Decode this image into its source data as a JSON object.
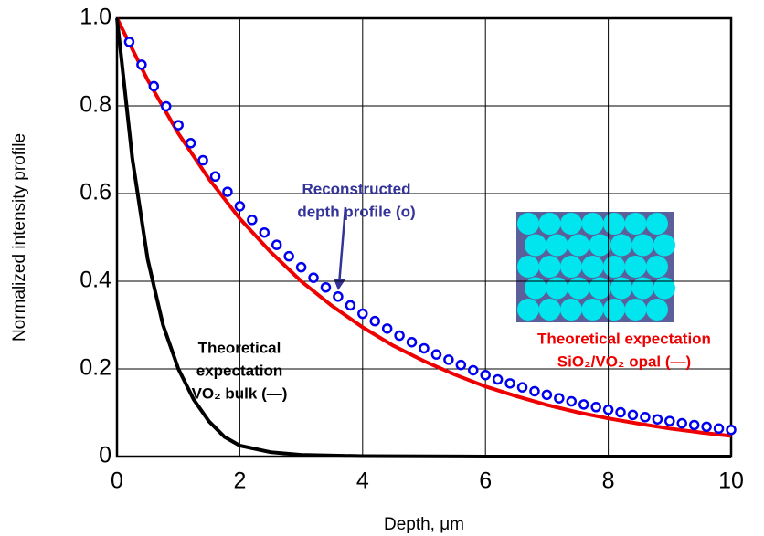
{
  "chart_data": {
    "type": "line",
    "x_label": "Depth, μm",
    "y_label": "Normalized intensity profile",
    "xlim": [
      0,
      10
    ],
    "ylim": [
      0,
      1
    ],
    "xticks": [
      0,
      2,
      4,
      6,
      8,
      10
    ],
    "yticks": [
      0,
      0.2,
      0.4,
      0.6,
      0.8,
      {
        "value": 1,
        "label": "1.0"
      }
    ],
    "grid": true,
    "series": [
      {
        "style": "markers",
        "color": "#0000ee",
        "x": [
          0.2,
          0.4,
          0.6,
          0.8,
          1,
          1.2,
          1.4,
          1.6,
          1.8,
          2,
          2.2,
          2.4,
          2.6,
          2.8,
          3,
          3.2,
          3.4,
          3.6,
          3.8,
          4,
          4.2,
          4.4,
          4.6,
          4.8,
          5,
          5.2,
          5.4,
          5.6,
          5.8,
          6,
          6.2,
          6.4,
          6.6,
          6.8,
          7,
          7.2,
          7.4,
          7.6,
          7.8,
          8,
          8.2,
          8.4,
          8.6,
          8.8,
          9,
          9.2,
          9.4,
          9.6,
          9.8,
          10
        ],
        "values": [
          0.946,
          0.894,
          0.845,
          0.799,
          0.756,
          0.715,
          0.676,
          0.639,
          0.604,
          0.571,
          0.54,
          0.511,
          0.483,
          0.457,
          0.432,
          0.408,
          0.386,
          0.365,
          0.345,
          0.326,
          0.309,
          0.292,
          0.276,
          0.261,
          0.247,
          0.233,
          0.221,
          0.209,
          0.197,
          0.186,
          0.176,
          0.167,
          0.158,
          0.149,
          0.141,
          0.133,
          0.126,
          0.119,
          0.113,
          0.107,
          0.101,
          0.095,
          0.09,
          0.085,
          0.081,
          0.076,
          0.072,
          0.068,
          0.064,
          0.061
        ]
      },
      {
        "style": "line",
        "color": "#ee0000",
        "x": [
          0,
          0.5,
          1,
          1.5,
          2,
          2.5,
          3,
          3.5,
          4,
          4.5,
          5,
          5.5,
          6,
          6.5,
          7,
          7.5,
          8,
          8.5,
          9,
          9.5,
          10
        ],
        "values": [
          1,
          0.859,
          0.737,
          0.633,
          0.543,
          0.467,
          0.4,
          0.344,
          0.295,
          0.253,
          0.218,
          0.187,
          0.16,
          0.138,
          0.118,
          0.101,
          0.087,
          0.075,
          0.064,
          0.055,
          0.047
        ]
      },
      {
        "style": "line",
        "color": "#000000",
        "x": [
          0,
          0.25,
          0.5,
          0.75,
          1,
          1.25,
          1.5,
          1.75,
          2,
          2.5,
          3,
          4,
          6,
          8,
          10
        ],
        "values": [
          1,
          0.68,
          0.45,
          0.3,
          0.2,
          0.13,
          0.08,
          0.045,
          0.025,
          0.01,
          0.004,
          0.001,
          0,
          0,
          0
        ]
      }
    ],
    "annotations": [
      {
        "color": "#333399",
        "lines": [
          "Reconstructed",
          "depth profile  (o)"
        ]
      },
      {
        "color": "#000000",
        "lines": [
          "Theoretical",
          "expectation",
          "VO₂ bulk (—)"
        ]
      },
      {
        "color": "#ee0000",
        "lines": [
          "Theoretical expectation",
          "SiO₂/VO₂ opal  (—)"
        ]
      }
    ]
  }
}
